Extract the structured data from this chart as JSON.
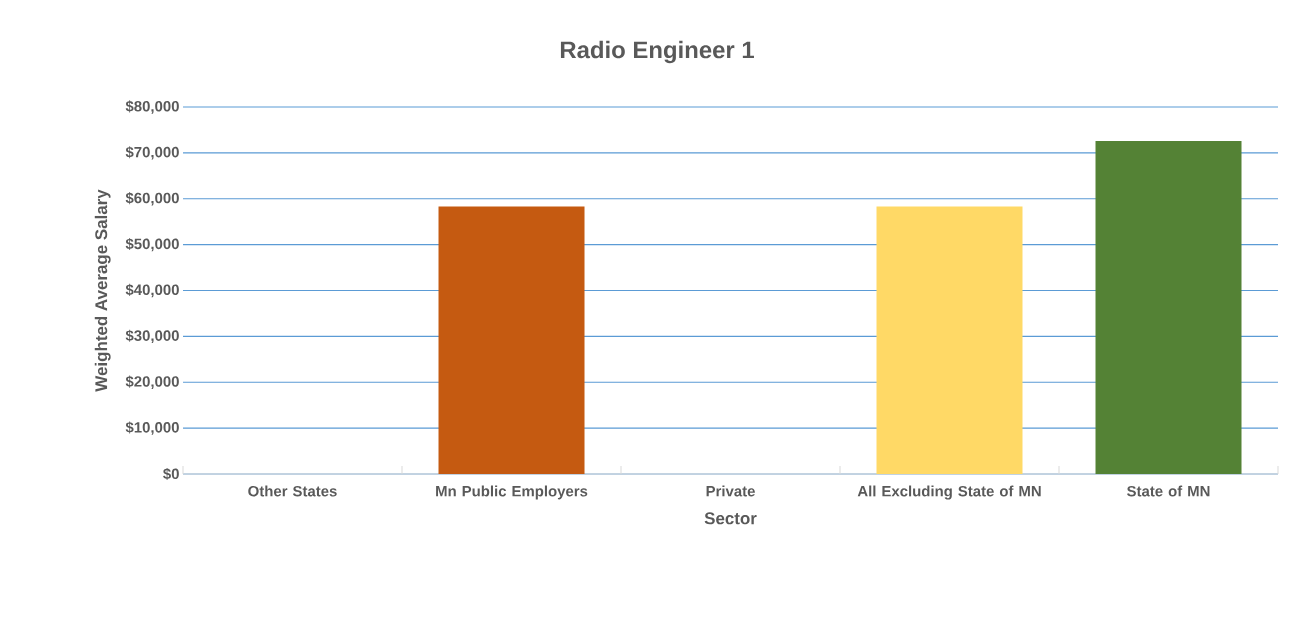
{
  "chart_data": {
    "type": "bar",
    "title": "Radio Engineer 1",
    "xlabel": "Sector",
    "ylabel": "Weighted Average Salary",
    "categories": [
      "Other States",
      "Mn Public Employers",
      "Private",
      "All Excluding State of MN",
      "State of MN"
    ],
    "values": [
      null,
      58300,
      null,
      58300,
      72600
    ],
    "colors": [
      "#c55a11",
      "#c55a11",
      "#ffd966",
      "#ffd966",
      "#548235"
    ],
    "ylim": [
      0,
      80000
    ],
    "yticks": [
      {
        "value": 0,
        "label": "$0"
      },
      {
        "value": 10000,
        "label": "$10,000"
      },
      {
        "value": 20000,
        "label": "$20,000"
      },
      {
        "value": 30000,
        "label": "$30,000"
      },
      {
        "value": 40000,
        "label": "$40,000"
      },
      {
        "value": 50000,
        "label": "$50,000"
      },
      {
        "value": 60000,
        "label": "$60,000"
      },
      {
        "value": 70000,
        "label": "$70,000"
      },
      {
        "value": 80000,
        "label": "$80,000"
      }
    ],
    "grid": "y"
  }
}
